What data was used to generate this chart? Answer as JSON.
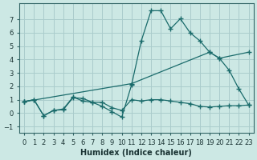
{
  "xlabel": "Humidex (Indice chaleur)",
  "background_color": "#cce8e4",
  "grid_color": "#aacccc",
  "line_color": "#1a6b6b",
  "xlim": [
    -0.5,
    23.5
  ],
  "ylim": [
    -1.5,
    8.2
  ],
  "xticks": [
    0,
    1,
    2,
    3,
    4,
    5,
    6,
    7,
    8,
    9,
    10,
    11,
    12,
    13,
    14,
    15,
    16,
    17,
    18,
    19,
    20,
    21,
    22,
    23
  ],
  "yticks": [
    -1,
    0,
    1,
    2,
    3,
    4,
    5,
    6,
    7
  ],
  "line1_x": [
    0,
    1,
    2,
    3,
    4,
    5,
    6,
    7,
    8,
    9,
    10,
    11,
    12,
    13,
    14,
    15,
    16,
    17,
    18,
    19,
    20,
    21,
    22,
    23
  ],
  "line1_y": [
    0.85,
    1.0,
    -0.2,
    0.2,
    0.3,
    1.2,
    0.9,
    0.8,
    0.5,
    0.1,
    -0.3,
    2.1,
    5.4,
    7.65,
    7.65,
    6.3,
    7.05,
    6.0,
    5.4,
    4.55,
    4.1,
    3.2,
    1.8,
    0.6
  ],
  "line2_x": [
    0,
    1,
    2,
    3,
    4,
    5,
    6,
    7,
    8,
    9,
    10,
    11,
    12,
    13,
    14,
    15,
    16,
    17,
    18,
    19,
    20,
    21,
    22,
    23
  ],
  "line2_y": [
    0.85,
    1.0,
    -0.2,
    0.2,
    0.25,
    1.15,
    1.1,
    0.8,
    0.8,
    0.4,
    0.2,
    1.0,
    0.9,
    1.0,
    1.0,
    0.9,
    0.8,
    0.7,
    0.5,
    0.45,
    0.5,
    0.55,
    0.55,
    0.6
  ],
  "line3_x": [
    0,
    11,
    19,
    20,
    23
  ],
  "line3_y": [
    0.85,
    2.2,
    4.55,
    4.1,
    4.55
  ]
}
